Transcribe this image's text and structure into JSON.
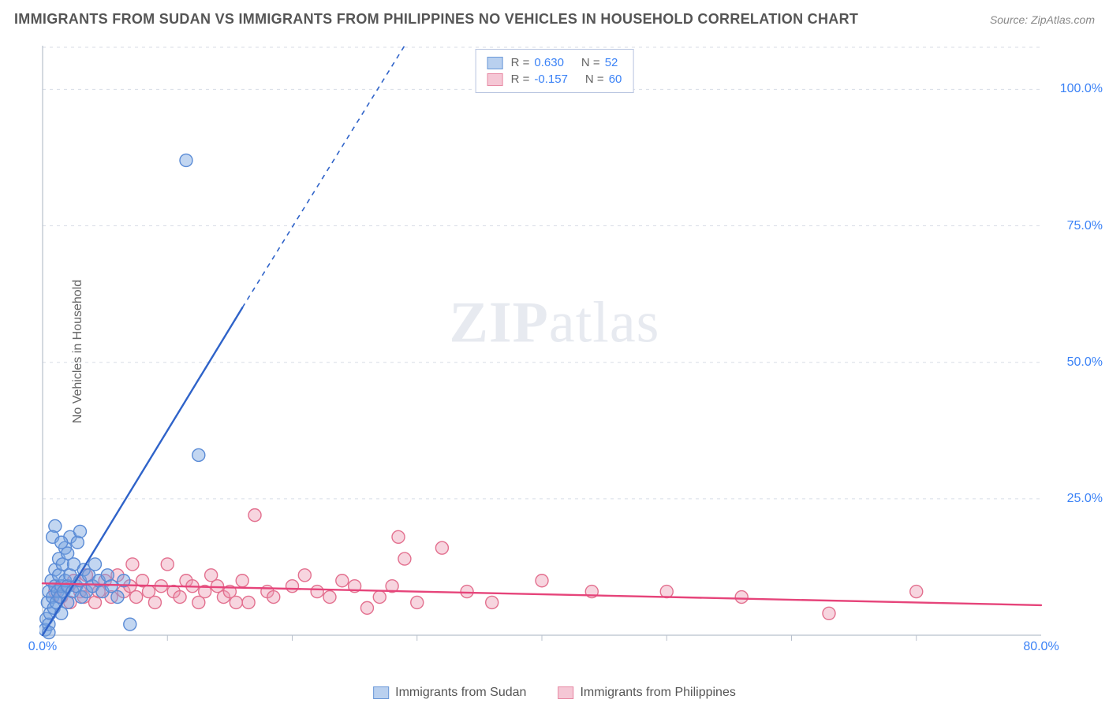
{
  "title": "IMMIGRANTS FROM SUDAN VS IMMIGRANTS FROM PHILIPPINES NO VEHICLES IN HOUSEHOLD CORRELATION CHART",
  "source": "Source: ZipAtlas.com",
  "y_axis_label": "No Vehicles in Household",
  "watermark_zip": "ZIP",
  "watermark_atlas": "atlas",
  "chart": {
    "type": "scatter",
    "xlim": [
      0,
      80
    ],
    "ylim": [
      0,
      108
    ],
    "x_ticks": [
      0,
      80
    ],
    "x_tick_labels": [
      "0.0%",
      "80.0%"
    ],
    "y_ticks": [
      25,
      50,
      75,
      100
    ],
    "y_tick_labels": [
      "25.0%",
      "50.0%",
      "75.0%",
      "100.0%"
    ],
    "x_minor_ticks": [
      10,
      20,
      30,
      40,
      50,
      60,
      70
    ],
    "grid_color": "#d8dde6",
    "axis_color": "#b8c0cc",
    "background": "#ffffff",
    "marker_radius": 8,
    "marker_stroke_width": 1.4,
    "trend_solid_width": 2.4,
    "trend_dash_width": 1.6,
    "trend_dash_pattern": "6 6"
  },
  "series": {
    "sudan": {
      "label": "Immigrants from Sudan",
      "fill": "rgba(120,165,225,0.45)",
      "stroke": "#5a8bd6",
      "swatch_fill": "#b9d0ef",
      "swatch_border": "#6a98d8",
      "R": "0.630",
      "N": "52",
      "trend": {
        "color": "#2f63c9",
        "x1": 0,
        "y1": 0,
        "x2": 16,
        "y2": 60,
        "dash_x2": 29,
        "dash_y2": 108
      },
      "points": [
        [
          0.2,
          1
        ],
        [
          0.3,
          3
        ],
        [
          0.4,
          6
        ],
        [
          0.5,
          2
        ],
        [
          0.5,
          8
        ],
        [
          0.6,
          4
        ],
        [
          0.7,
          10
        ],
        [
          0.8,
          7
        ],
        [
          0.9,
          5
        ],
        [
          1.0,
          9
        ],
        [
          1.0,
          12
        ],
        [
          1.1,
          6
        ],
        [
          1.2,
          8
        ],
        [
          1.3,
          11
        ],
        [
          1.3,
          14
        ],
        [
          1.4,
          7
        ],
        [
          1.5,
          9
        ],
        [
          1.5,
          4
        ],
        [
          1.6,
          13
        ],
        [
          1.7,
          8
        ],
        [
          1.8,
          10
        ],
        [
          1.8,
          16
        ],
        [
          2.0,
          9
        ],
        [
          2.0,
          6
        ],
        [
          2.2,
          11
        ],
        [
          2.2,
          18
        ],
        [
          2.4,
          8
        ],
        [
          2.5,
          13
        ],
        [
          2.7,
          9
        ],
        [
          2.8,
          17
        ],
        [
          3.0,
          10
        ],
        [
          3.1,
          7
        ],
        [
          3.3,
          12
        ],
        [
          3.5,
          8
        ],
        [
          3.7,
          11
        ],
        [
          4.0,
          9
        ],
        [
          4.2,
          13
        ],
        [
          4.5,
          10
        ],
        [
          4.8,
          8
        ],
        [
          5.2,
          11
        ],
        [
          5.5,
          9
        ],
        [
          6.0,
          7
        ],
        [
          6.5,
          10
        ],
        [
          7.0,
          2
        ],
        [
          1.0,
          20
        ],
        [
          0.8,
          18
        ],
        [
          3.0,
          19
        ],
        [
          2.0,
          15
        ],
        [
          1.5,
          17
        ],
        [
          11.5,
          87
        ],
        [
          12.5,
          33
        ],
        [
          0.5,
          0.5
        ]
      ]
    },
    "philippines": {
      "label": "Immigrants from Philippines",
      "fill": "rgba(235,150,175,0.40)",
      "stroke": "#e3708f",
      "swatch_fill": "#f5c7d5",
      "swatch_border": "#e78aa4",
      "R": "-0.157",
      "N": "60",
      "trend": {
        "color": "#e6447a",
        "x1": 0,
        "y1": 9.5,
        "x2": 80,
        "y2": 5.5
      },
      "points": [
        [
          1.0,
          8
        ],
        [
          1.5,
          7
        ],
        [
          2.0,
          9
        ],
        [
          2.2,
          6
        ],
        [
          2.5,
          10
        ],
        [
          3.0,
          8
        ],
        [
          3.3,
          7
        ],
        [
          3.5,
          11
        ],
        [
          4.0,
          9
        ],
        [
          4.2,
          6
        ],
        [
          4.5,
          8
        ],
        [
          5.0,
          10
        ],
        [
          5.5,
          7
        ],
        [
          6.0,
          11
        ],
        [
          6.5,
          8
        ],
        [
          7.0,
          9
        ],
        [
          7.2,
          13
        ],
        [
          7.5,
          7
        ],
        [
          8.0,
          10
        ],
        [
          8.5,
          8
        ],
        [
          9.0,
          6
        ],
        [
          9.5,
          9
        ],
        [
          10.0,
          13
        ],
        [
          10.5,
          8
        ],
        [
          11.0,
          7
        ],
        [
          11.5,
          10
        ],
        [
          12.0,
          9
        ],
        [
          12.5,
          6
        ],
        [
          13.0,
          8
        ],
        [
          13.5,
          11
        ],
        [
          14.0,
          9
        ],
        [
          14.5,
          7
        ],
        [
          15.0,
          8
        ],
        [
          15.5,
          6
        ],
        [
          16.0,
          10
        ],
        [
          16.5,
          6
        ],
        [
          17.0,
          22
        ],
        [
          18.0,
          8
        ],
        [
          18.5,
          7
        ],
        [
          20.0,
          9
        ],
        [
          21.0,
          11
        ],
        [
          22.0,
          8
        ],
        [
          23.0,
          7
        ],
        [
          24.0,
          10
        ],
        [
          25.0,
          9
        ],
        [
          26.0,
          5
        ],
        [
          27.0,
          7
        ],
        [
          28.0,
          9
        ],
        [
          28.5,
          18
        ],
        [
          29.0,
          14
        ],
        [
          30.0,
          6
        ],
        [
          32.0,
          16
        ],
        [
          34.0,
          8
        ],
        [
          36.0,
          6
        ],
        [
          40.0,
          10
        ],
        [
          44.0,
          8
        ],
        [
          50.0,
          8
        ],
        [
          56.0,
          7
        ],
        [
          63.0,
          4
        ],
        [
          70.0,
          8
        ]
      ]
    }
  },
  "legend_top": {
    "rows": [
      {
        "key": "sudan",
        "r_label": "R =",
        "n_label": "N ="
      },
      {
        "key": "philippines",
        "r_label": "R =",
        "n_label": "N ="
      }
    ]
  }
}
